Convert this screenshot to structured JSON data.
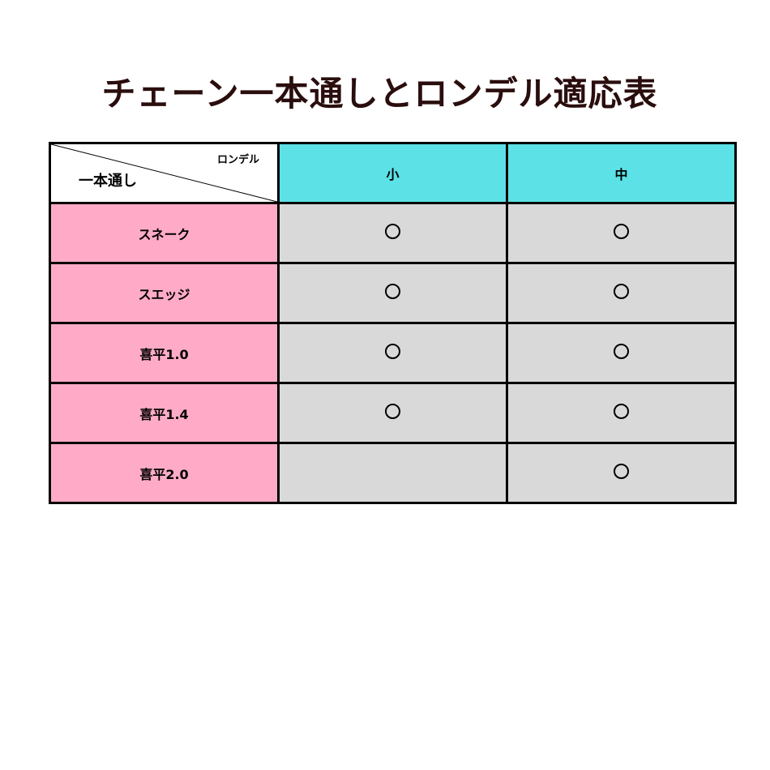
{
  "title": "チェーン一本通しとロンデル適応表",
  "corner": {
    "column_label": "ロンデル",
    "row_label": "一本通し"
  },
  "columns": [
    "小",
    "中"
  ],
  "rows": [
    {
      "label": "スネーク",
      "values": [
        "○",
        "○"
      ]
    },
    {
      "label": "スエッジ",
      "values": [
        "○",
        "○"
      ]
    },
    {
      "label": "喜平1.0",
      "values": [
        "○",
        "○"
      ]
    },
    {
      "label": "喜平1.4",
      "values": [
        "○",
        "○"
      ]
    },
    {
      "label": "喜平2.0",
      "values": [
        "",
        "○"
      ]
    }
  ],
  "colors": {
    "header": "#5ce1e6",
    "row_header": "#ffabc7",
    "cell": "#d9d9d9",
    "title": "#2a0d0d"
  }
}
